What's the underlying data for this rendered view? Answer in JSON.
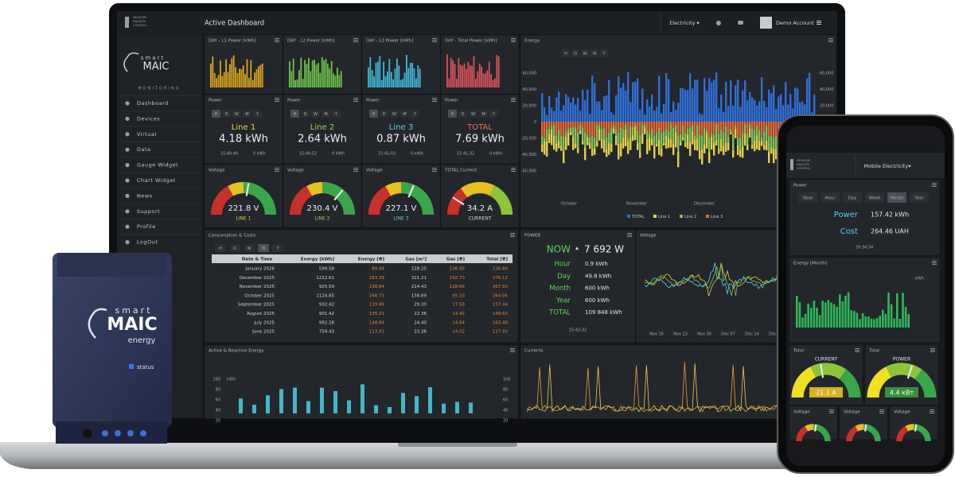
{
  "header": {
    "title": "Active Dashboard",
    "menu": "Electricity ▾",
    "account": "Demo Account"
  },
  "logo": {
    "tagline": [
      "MEASURE",
      "ANALYZE",
      "CONTROL"
    ],
    "brand": "smart",
    "name": "MAIC",
    "section": "MONITORING"
  },
  "sidebar": [
    "Dashboard",
    "Devices",
    "Virtual",
    "Data",
    "Gauge Widget",
    "Chart Widget",
    "News",
    "Support",
    "Profile",
    "LogOut"
  ],
  "period_tabs": [
    "H",
    "D",
    "W",
    "M",
    "Y"
  ],
  "day_widgets": [
    {
      "title": "DAY - L1 Power [kWh]",
      "color": "#d9a521"
    },
    {
      "title": "DAY - L2 Power [kWh]",
      "color": "#6cc24a"
    },
    {
      "title": "DAY - L3 Power [kWh]",
      "color": "#3fb8d6"
    },
    {
      "title": "DAY - Total Power [kWh]",
      "color": "#d9545a"
    }
  ],
  "power_widgets": [
    {
      "title": "Power",
      "line": "Line 1",
      "value": "4.18 kWh",
      "time": "15:40:40",
      "sub": "0 kWh",
      "color": "#f0cf4a"
    },
    {
      "title": "Power",
      "line": "Line 2",
      "value": "2.64 kWh",
      "time": "15:40:52",
      "sub": "0 kWh",
      "color": "#8fdc5a"
    },
    {
      "title": "Power",
      "line": "Line 3",
      "value": "0.87 kWh",
      "time": "15:41:03",
      "sub": "0 kWh",
      "color": "#5ad0f0"
    },
    {
      "title": "Power",
      "line": "TOTAL",
      "value": "7.69 kWh",
      "time": "15:41:32",
      "sub": "0 kWh",
      "color": "#f06a5a"
    }
  ],
  "voltage_widgets": [
    {
      "title": "Voltage",
      "value": "221.8 V",
      "label": "LINE 1",
      "color": "#f0cf4a"
    },
    {
      "title": "Voltage",
      "value": "230.4 V",
      "label": "LINE 2",
      "color": "#8fdc5a"
    },
    {
      "title": "Voltage",
      "value": "227.1 V",
      "label": "LINE 3",
      "color": "#5ad0f0"
    },
    {
      "title": "TOTAL Current",
      "value": "34.2 A",
      "label": "CURRENT",
      "color": "#dddddd"
    }
  ],
  "energy_chart": {
    "title": "Energy",
    "yticks": [
      "60,000",
      "40,000",
      "20,000",
      "0",
      "-20,000",
      "-40,000",
      "-60,000"
    ],
    "months": [
      "October",
      "November",
      "December",
      "2026"
    ],
    "legend": [
      {
        "name": "TOTAL",
        "color": "#2f6fd6"
      },
      {
        "name": "Line 1",
        "color": "#e8d04a"
      },
      {
        "name": "Line 2",
        "color": "#7fc45a"
      },
      {
        "name": "Line 3",
        "color": "#e0683a"
      }
    ]
  },
  "consumption": {
    "title": "Consumption & Costs",
    "columns": [
      "Date & Time",
      "Energy [kWh]",
      "Energy [₴]",
      "Gas [m³]",
      "Gas [₴]",
      "Total [₴]"
    ],
    "rows": [
      [
        "January 2026",
        "599.58",
        "89.94",
        "228.25",
        "136.95",
        "226.89"
      ],
      [
        "December 2025",
        "1222.61",
        "183.39",
        "321.21",
        "192.73",
        "376.12"
      ],
      [
        "November 2025",
        "925.59",
        "138.84",
        "214.43",
        "128.66",
        "267.50"
      ],
      [
        "October 2025",
        "1124.85",
        "168.73",
        "158.89",
        "95.33",
        "264.06"
      ],
      [
        "September 2025",
        "932.42",
        "139.86",
        "29.30",
        "17.58",
        "157.44"
      ],
      [
        "August 2025",
        "901.42",
        "135.21",
        "22.36",
        "13.42",
        "148.63"
      ],
      [
        "July 2025",
        "992.28",
        "148.84",
        "24.40",
        "14.64",
        "163.48"
      ],
      [
        "June 2025",
        "759.43",
        "113.91",
        "23.36",
        "14.02",
        "127.93"
      ]
    ]
  },
  "power_panel": {
    "title": "POWER",
    "now_label": "NOW",
    "now": "7 692 W",
    "rows": [
      [
        "Hour",
        "0.9 kWh"
      ],
      [
        "Day",
        "49.8 kWh"
      ],
      [
        "Month",
        "600 kWh"
      ],
      [
        "Year",
        "600 kWh"
      ],
      [
        "TOTAL",
        "109 848 kWh"
      ]
    ],
    "time": "15:42:32"
  },
  "voltage_chart": {
    "title": "Voltage",
    "x": [
      "Nov 16",
      "Nov 23",
      "Nov 30",
      "Dec 07",
      "Dec 14",
      "Dec 21"
    ]
  },
  "active_reactive": {
    "title": "Active & Reactive Energy",
    "unit": "kWh",
    "yticks": [
      100,
      80,
      60,
      40,
      20
    ]
  },
  "currents": {
    "title": "Currents"
  },
  "phone": {
    "menu": "Mobile Electricity▾",
    "power_title": "Power",
    "tabs": [
      "Now",
      "Hour",
      "Day",
      "Week",
      "Month",
      "Year"
    ],
    "rows": [
      [
        "Power",
        "157.42 kWh"
      ],
      [
        "Cost",
        "264.46 UAH"
      ]
    ],
    "time": "20:34:34",
    "energy_title": "Energy [Month]",
    "energy_unit": "kWh",
    "gauges": [
      {
        "title": "Total",
        "label": "CURRENT",
        "value": "21.1 A"
      },
      {
        "title": "Total",
        "label": "POWER",
        "value": "4.4 кВт"
      }
    ],
    "voltage": [
      "Voltage",
      "Voltage",
      "Voltage"
    ]
  },
  "device": {
    "brand": "smart",
    "name": "MAIC",
    "sub": "energy",
    "status": "status"
  }
}
